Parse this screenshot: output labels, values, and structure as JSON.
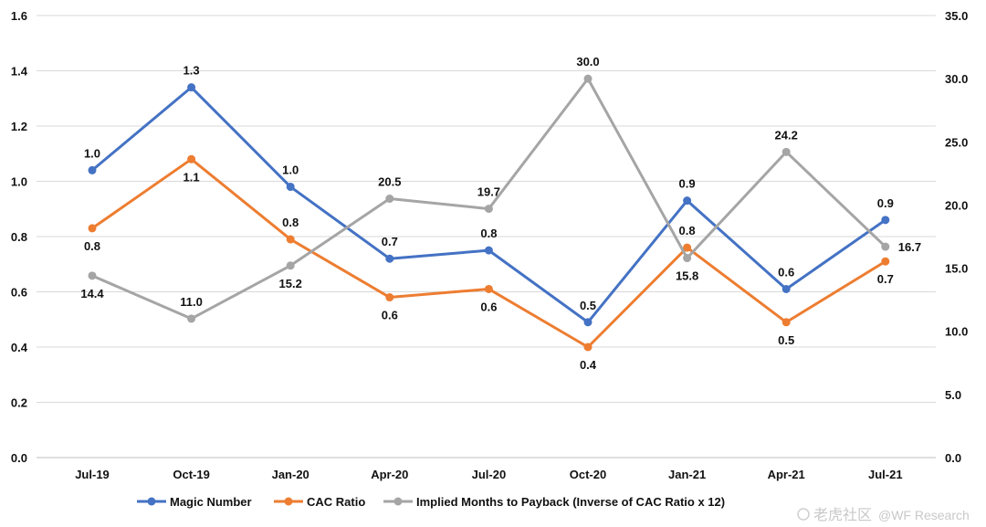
{
  "chart_data": {
    "type": "line",
    "title": "",
    "categories": [
      "Jul-19",
      "Oct-19",
      "Jan-20",
      "Apr-20",
      "Jul-20",
      "Oct-20",
      "Jan-21",
      "Apr-21",
      "Jul-21"
    ],
    "y_left": {
      "ylim": [
        0,
        1.6
      ],
      "ticks": [
        "0.0",
        "0.2",
        "0.4",
        "0.6",
        "0.8",
        "1.0",
        "1.2",
        "1.4",
        "1.6"
      ],
      "tick_values": [
        0,
        0.2,
        0.4,
        0.6,
        0.8,
        1.0,
        1.2,
        1.4,
        1.6
      ]
    },
    "y_right": {
      "ylim": [
        0,
        35
      ],
      "ticks": [
        "0.0",
        "5.0",
        "10.0",
        "15.0",
        "20.0",
        "25.0",
        "30.0",
        "35.0"
      ],
      "tick_values": [
        0,
        5,
        10,
        15,
        20,
        25,
        30,
        35
      ]
    },
    "grid": true,
    "legend_position": "bottom",
    "series": [
      {
        "name": "Magic Number",
        "axis": "left",
        "color": "#4472C4",
        "values": [
          1.04,
          1.34,
          0.98,
          0.72,
          0.75,
          0.49,
          0.93,
          0.61,
          0.86
        ],
        "labels": [
          "1.0",
          "1.3",
          "1.0",
          "0.7",
          "0.8",
          "0.5",
          "0.9",
          "0.6",
          "0.9"
        ]
      },
      {
        "name": "CAC Ratio",
        "axis": "left",
        "color": "#ED7D31",
        "values": [
          0.83,
          1.08,
          0.79,
          0.58,
          0.61,
          0.4,
          0.76,
          0.49,
          0.71
        ],
        "labels": [
          "0.8",
          "1.1",
          "0.8",
          "0.6",
          "0.6",
          "0.4",
          "0.8",
          "0.5",
          "0.7"
        ]
      },
      {
        "name": "Implied Months to Payback (Inverse of CAC Ratio x 12)",
        "axis": "right",
        "color": "#A5A5A5",
        "values": [
          14.4,
          11.0,
          15.2,
          20.5,
          19.7,
          30.0,
          15.8,
          24.2,
          16.7
        ],
        "labels": [
          "14.4",
          "11.0",
          "15.2",
          "20.5",
          "19.7",
          "30.0",
          "15.8",
          "24.2",
          "16.7"
        ]
      }
    ]
  },
  "watermark": {
    "logo_text": "老虎社区",
    "handle": "@WF Research"
  }
}
